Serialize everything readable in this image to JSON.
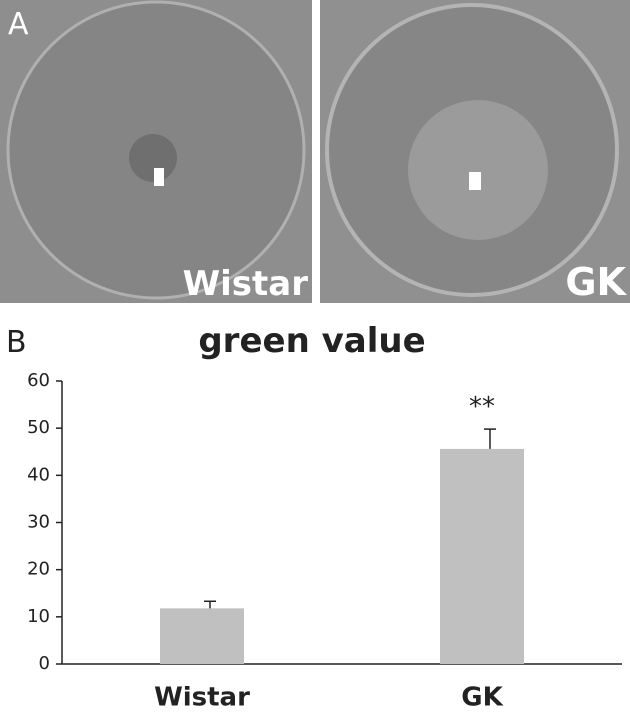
{
  "panel_a": {
    "label": "A",
    "images": [
      {
        "label": "Wistar"
      },
      {
        "label": "GK"
      }
    ]
  },
  "chart_data": {
    "type": "bar",
    "panel_label": "B",
    "title": "green value",
    "categories": [
      "Wistar",
      "GK"
    ],
    "values": [
      11.8,
      45.6
    ],
    "errors": [
      1.5,
      4.2
    ],
    "annotations": [
      {
        "category": "GK",
        "text": "**"
      }
    ],
    "color": "#c0c0c0",
    "ylim": [
      0,
      60
    ],
    "yticks": [
      0,
      10,
      20,
      30,
      40,
      50,
      60
    ],
    "grid": false
  }
}
